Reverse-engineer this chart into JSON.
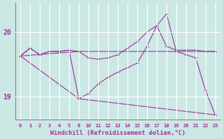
{
  "background_color": "#cce8e5",
  "grid_color": "#ffffff",
  "line_color": "#993399",
  "xlabel": "Windchill (Refroidissement éolien,°C)",
  "xlabel_color": "#993399",
  "xtick_color": "#993399",
  "ytick_color": "#993399",
  "ylim": [
    18.65,
    20.45
  ],
  "yticks": [
    19,
    20
  ],
  "xtick_labels": [
    "0",
    "1",
    "2",
    "3",
    "4",
    "5",
    "6",
    "10",
    "11",
    "12",
    "13",
    "14",
    "15",
    "16",
    "17",
    "18",
    "19",
    "20",
    "21",
    "22",
    "23"
  ],
  "xtick_positions": [
    0,
    1,
    2,
    3,
    4,
    5,
    6,
    7,
    8,
    9,
    10,
    11,
    12,
    13,
    14,
    15,
    16,
    17,
    18,
    19,
    20
  ],
  "line1_x": [
    0,
    1,
    2,
    3,
    4,
    5,
    6,
    7,
    8,
    9,
    10,
    11,
    12,
    13,
    14,
    15,
    16,
    17,
    18,
    19,
    20
  ],
  "line1_y": [
    19.63,
    19.75,
    19.65,
    19.7,
    19.7,
    19.72,
    19.7,
    19.6,
    19.58,
    19.6,
    19.65,
    19.75,
    19.85,
    20.0,
    20.1,
    19.78,
    19.72,
    19.72,
    19.72,
    19.7,
    19.7
  ],
  "line2_x": [
    0,
    1,
    2,
    3,
    4,
    5,
    6,
    7,
    8,
    9,
    10,
    11,
    12,
    13,
    14,
    15,
    16,
    17,
    18,
    19,
    20
  ],
  "line2_y": [
    19.63,
    19.75,
    19.65,
    19.7,
    19.7,
    19.72,
    18.97,
    19.05,
    19.2,
    19.3,
    19.38,
    19.45,
    19.52,
    19.78,
    20.1,
    20.28,
    19.7,
    19.65,
    19.6,
    19.1,
    18.72
  ],
  "line3_x": [
    0,
    6,
    20
  ],
  "line3_y": [
    19.63,
    19.7,
    19.7
  ],
  "line4_x": [
    0,
    6,
    20
  ],
  "line4_y": [
    19.63,
    18.97,
    18.72
  ]
}
